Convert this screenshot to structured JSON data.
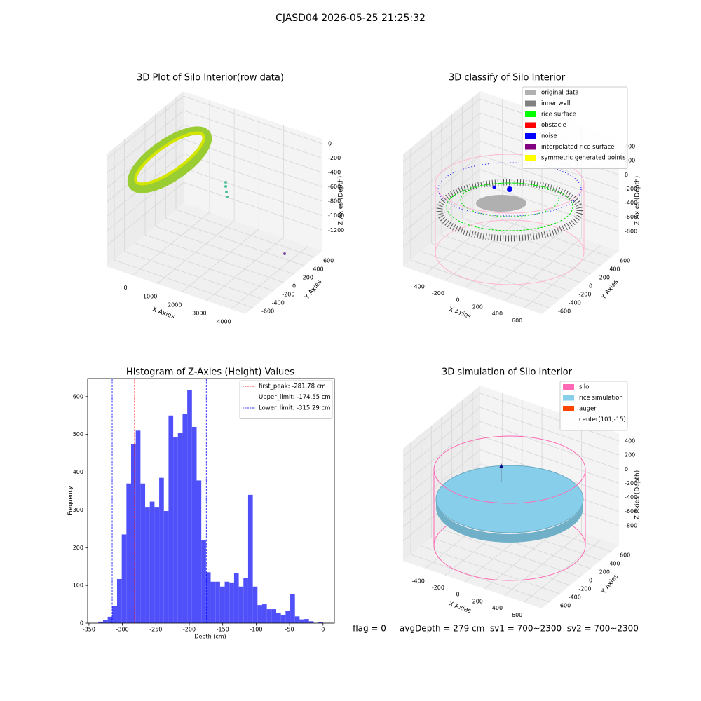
{
  "title": "CJASD04 2026-05-25 21:25:32",
  "footer": "flag = 0     avgDepth = 279 cm  sv1 = 700~2300  sv2 = 700~2300",
  "chart_data": [
    {
      "type": "scatter3d",
      "title": "3D Plot of Silo Interior(row data)",
      "xlabel": "X Axies",
      "ylabel": "Y Axies",
      "zlabel": "Z Axies (Depth)",
      "xlim": [
        -1055,
        4585
      ],
      "xticks": [
        0,
        1000,
        2000,
        3000,
        4000
      ],
      "ylim": [
        -750,
        750
      ],
      "yticks": [
        -600,
        -400,
        -200,
        0,
        200,
        400,
        600
      ],
      "zlim": [
        -1490,
        70
      ],
      "zticks": [
        -1200,
        -1000,
        -800,
        -600,
        -400,
        -200,
        0
      ],
      "grid": true
    },
    {
      "type": "scatter3d",
      "title": "3D classify of Silo Interior",
      "xlabel": "X Axies",
      "ylabel": "Y Axies",
      "zlabel": "Z Axies (Depth)",
      "xlim": [
        -625,
        780
      ],
      "xticks": [
        -400,
        -200,
        0,
        200,
        400,
        600
      ],
      "ylim": [
        -750,
        750
      ],
      "yticks": [
        -600,
        -400,
        -200,
        0,
        200,
        400,
        600
      ],
      "zlim": [
        -1080,
        510
      ],
      "zticks": [
        -800,
        -600,
        -400,
        -200,
        0,
        200,
        400
      ],
      "grid": true,
      "legend": [
        {
          "name": "original data",
          "color": "#b0b0b0"
        },
        {
          "name": "inner wall",
          "color": "#808080"
        },
        {
          "name": "rice surface",
          "color": "#00ff00"
        },
        {
          "name": "obstacle",
          "color": "#ff0000"
        },
        {
          "name": "noise",
          "color": "#0000ff"
        },
        {
          "name": "interpolated rice surface",
          "color": "#800080"
        },
        {
          "name": "symmetric generated points",
          "color": "#ffff00"
        }
      ]
    },
    {
      "type": "histogram",
      "title": "Histogram of Z-Axies (Height) Values",
      "xlabel": "Depth (cm)",
      "ylabel": "Frequency",
      "color": "#5050fa",
      "bins": [
        -336,
        -329,
        -322,
        -315,
        -308,
        -301,
        -294,
        -287,
        -280,
        -273,
        -266,
        -259,
        -252,
        -245,
        -238,
        -231,
        -224,
        -217,
        -210,
        -203,
        -196,
        -189,
        -182,
        -175,
        -168,
        -161,
        -154,
        -147,
        -140,
        -133,
        -126,
        -119,
        -112,
        -105,
        -98,
        -91,
        -84,
        -77,
        -70,
        -63,
        -56,
        -49,
        -42,
        -35,
        -28,
        -21,
        -14,
        -7,
        0
      ],
      "values": [
        4,
        8,
        17,
        45,
        117,
        235,
        370,
        475,
        510,
        370,
        308,
        322,
        308,
        385,
        297,
        550,
        493,
        505,
        555,
        617,
        520,
        378,
        220,
        135,
        110,
        110,
        97,
        110,
        108,
        132,
        97,
        120,
        340,
        97,
        48,
        50,
        37,
        37,
        27,
        22,
        32,
        77,
        18,
        10,
        11,
        5,
        0,
        3
      ],
      "xlim": [
        -352,
        17
      ],
      "xticks": [
        -350,
        -300,
        -250,
        -200,
        -150,
        -100,
        -50,
        0
      ],
      "ylim": [
        0,
        648
      ],
      "yticks": [
        0,
        100,
        200,
        300,
        400,
        500,
        600
      ],
      "vlines": [
        {
          "name": "first_peak: -281.78 cm",
          "value": -281.78,
          "color": "#ff0000"
        },
        {
          "name": "Upper_limit: -174.55 cm",
          "value": -174.55,
          "color": "#0000ff"
        },
        {
          "name": "Lower_limit: -315.29 cm",
          "value": -315.29,
          "color": "#0000ff"
        }
      ]
    },
    {
      "type": "scatter3d",
      "title": "3D simulation of Silo Interior",
      "xlabel": "X Axies",
      "ylabel": "Y Axies",
      "zlabel": "Z Axies (Depth)",
      "xlim": [
        -625,
        780
      ],
      "xticks": [
        -400,
        -200,
        0,
        200,
        400,
        600
      ],
      "ylim": [
        -750,
        750
      ],
      "yticks": [
        -600,
        -400,
        -200,
        0,
        200,
        400,
        600
      ],
      "zlim": [
        -1080,
        510
      ],
      "zticks": [
        -800,
        -600,
        -400,
        -200,
        0,
        200,
        400
      ],
      "grid": true,
      "legend": [
        {
          "name": "silo",
          "color": "#ff69b4"
        },
        {
          "name": "rice simulation",
          "color": "#87ceeb"
        },
        {
          "name": "auger",
          "color": "#ff4500"
        },
        {
          "name": "center(101,-15)"
        }
      ]
    }
  ]
}
